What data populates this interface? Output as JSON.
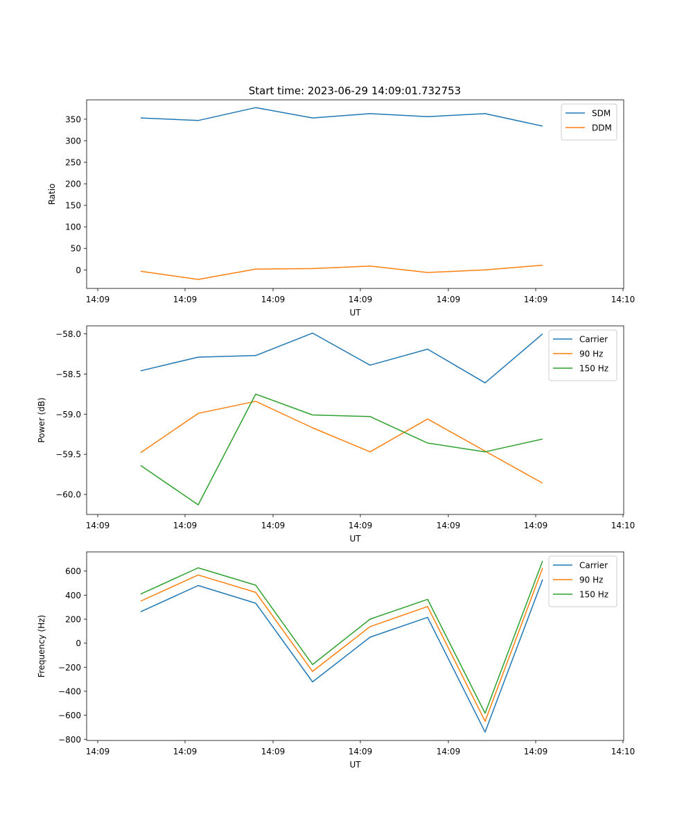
{
  "figure": {
    "title": "Start time: 2023-06-29 14:09:01.732753"
  },
  "chart_data": [
    {
      "type": "line",
      "title": "Start time: 2023-06-29 14:09:01.732753",
      "xlabel": "UT",
      "ylabel": "Ratio",
      "x_tick_labels": [
        "14:09",
        "14:09",
        "14:09",
        "14:09",
        "14:09",
        "14:09",
        "14:10"
      ],
      "y_ticks": [
        0,
        50,
        100,
        150,
        200,
        250,
        300,
        350
      ],
      "ylim": [
        -43,
        395
      ],
      "legend_position": "top-right",
      "grid": false,
      "series": [
        {
          "name": "SDM",
          "color": "#1f77b4",
          "values": [
            353,
            347,
            377,
            353,
            363,
            356,
            363,
            334
          ]
        },
        {
          "name": "DDM",
          "color": "#ff7f0e",
          "values": [
            -3,
            -22,
            2,
            3,
            9,
            -6,
            0,
            11
          ]
        }
      ]
    },
    {
      "type": "line",
      "title": "",
      "xlabel": "UT",
      "ylabel": "Power (dB)",
      "x_tick_labels": [
        "14:09",
        "14:09",
        "14:09",
        "14:09",
        "14:09",
        "14:09",
        "14:10"
      ],
      "y_ticks": [
        -60.0,
        -59.5,
        -59.0,
        -58.5,
        -58.0
      ],
      "y_tick_labels": [
        "−60.0",
        "−59.5",
        "−59.0",
        "−58.5",
        "−58.0"
      ],
      "ylim": [
        -60.25,
        -57.9
      ],
      "legend_position": "top-right",
      "grid": false,
      "series": [
        {
          "name": "Carrier",
          "color": "#1f77b4",
          "values": [
            -58.46,
            -58.29,
            -58.27,
            -57.99,
            -58.39,
            -58.19,
            -58.61,
            -58.0
          ]
        },
        {
          "name": "90 Hz",
          "color": "#ff7f0e",
          "values": [
            -59.48,
            -58.99,
            -58.84,
            -59.17,
            -59.47,
            -59.06,
            -59.46,
            -59.86
          ]
        },
        {
          "name": "150 Hz",
          "color": "#2ca02c",
          "values": [
            -59.64,
            -60.13,
            -58.75,
            -59.01,
            -59.03,
            -59.36,
            -59.47,
            -59.31
          ]
        }
      ]
    },
    {
      "type": "line",
      "title": "",
      "xlabel": "UT",
      "ylabel": "Frequency (Hz)",
      "x_tick_labels": [
        "14:09",
        "14:09",
        "14:09",
        "14:09",
        "14:09",
        "14:09",
        "14:10"
      ],
      "y_ticks": [
        -800,
        -600,
        -400,
        -200,
        0,
        200,
        400,
        600
      ],
      "y_tick_labels": [
        "−800",
        "−600",
        "−400",
        "−200",
        "0",
        "200",
        "400",
        "600"
      ],
      "ylim": [
        -810,
        760
      ],
      "legend_position": "top-right",
      "grid": false,
      "series": [
        {
          "name": "Carrier",
          "color": "#1f77b4",
          "values": [
            262,
            480,
            333,
            -322,
            50,
            215,
            -740,
            530
          ]
        },
        {
          "name": "90 Hz",
          "color": "#ff7f0e",
          "values": [
            350,
            568,
            423,
            -235,
            138,
            305,
            -650,
            625
          ]
        },
        {
          "name": "150 Hz",
          "color": "#2ca02c",
          "values": [
            409,
            627,
            483,
            -178,
            200,
            365,
            -583,
            685
          ]
        }
      ]
    }
  ]
}
